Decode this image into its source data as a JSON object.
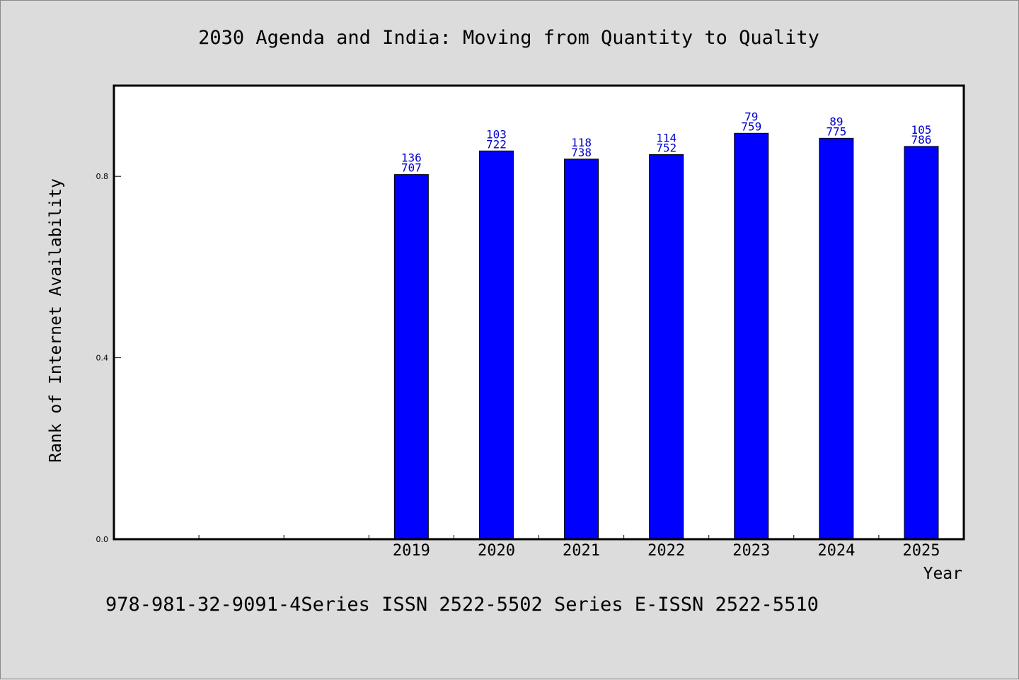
{
  "chart_data": {
    "type": "bar",
    "title": "2030 Agenda and India: Moving from Quantity to Quality",
    "xlabel": "Year",
    "ylabel": "Rank of Internet Availability",
    "categories": [
      "",
      "",
      "",
      "2019",
      "2020",
      "2021",
      "2022",
      "2023",
      "2024",
      "2025"
    ],
    "values": [
      null,
      null,
      null,
      0.804,
      0.856,
      0.838,
      0.848,
      0.895,
      0.884,
      0.866
    ],
    "data_labels": [
      null,
      null,
      null,
      [
        "136",
        "707"
      ],
      [
        "103",
        "722"
      ],
      [
        "118",
        "738"
      ],
      [
        "114",
        "752"
      ],
      [
        "79",
        "759"
      ],
      [
        "89",
        "775"
      ],
      [
        "105",
        "786"
      ]
    ],
    "yticks": [
      "0.0",
      "0.4",
      "0.8"
    ],
    "ylim": [
      0,
      1.0
    ],
    "grid": false,
    "legend": false,
    "colors": {
      "bar": "#0000ff",
      "bar_edge": "#000000",
      "label": "#0000cc",
      "plot_bg": "#ffffff",
      "page_bg": "#dcdcdc"
    }
  },
  "footer": "978-981-32-9091-4Series ISSN 2522-5502 Series E-ISSN 2522-5510"
}
